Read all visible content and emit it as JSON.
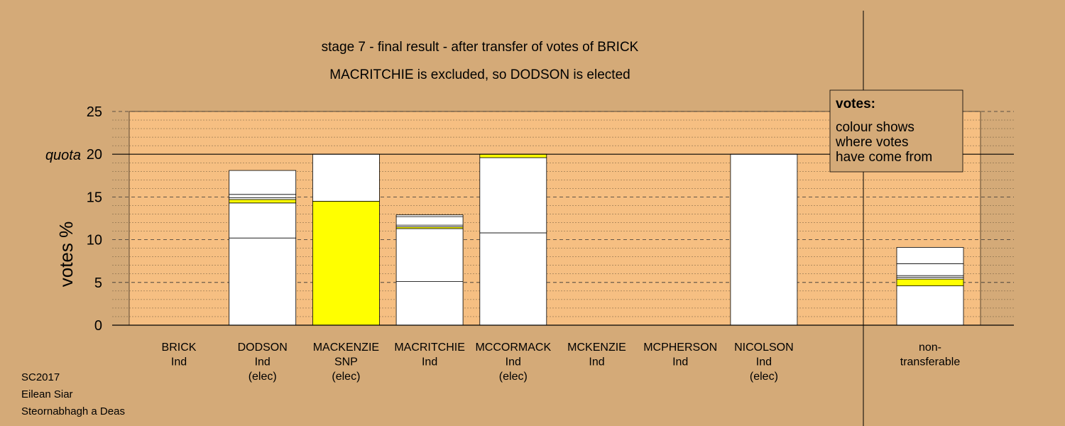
{
  "chart_data": {
    "type": "bar",
    "stacked": true,
    "title": "stage 7 - final result - after transfer of votes of BRICK",
    "subtitle": "MACRITCHIE is excluded, so DODSON is elected",
    "ylabel": "votes %",
    "ylim": [
      0,
      25
    ],
    "yticks": [
      "0",
      "5",
      "10",
      "15",
      "20",
      "25"
    ],
    "quota": {
      "label": "quota",
      "value": 20
    },
    "grid": true,
    "categories": [
      {
        "lines": [
          "BRICK",
          "Ind"
        ]
      },
      {
        "lines": [
          "DODSON",
          "Ind",
          "(elec)"
        ]
      },
      {
        "lines": [
          "MACKENZIE",
          "SNP",
          "(elec)"
        ]
      },
      {
        "lines": [
          "MACRITCHIE",
          "Ind"
        ]
      },
      {
        "lines": [
          "MCCORMACK",
          "Ind",
          "(elec)"
        ]
      },
      {
        "lines": [
          "MCKENZIE",
          "Ind"
        ]
      },
      {
        "lines": [
          "MCPHERSON",
          "Ind"
        ]
      },
      {
        "lines": [
          "NICOLSON",
          "Ind",
          "(elec)"
        ]
      },
      {
        "lines": [
          "non-",
          "transferable"
        ]
      }
    ],
    "stacks": [
      [],
      [
        {
          "v": 10.2,
          "c": "#ffffff"
        },
        {
          "v": 4.1,
          "c": "#ffffff"
        },
        {
          "v": 0.4,
          "c": "#ffff00"
        },
        {
          "v": 0.2,
          "c": "#ffffff"
        },
        {
          "v": 0.4,
          "c": "#ffffff"
        },
        {
          "v": 2.8,
          "c": "#ffffff"
        }
      ],
      [
        {
          "v": 14.5,
          "c": "#ffff00"
        },
        {
          "v": 5.5,
          "c": "#ffffff"
        }
      ],
      [
        {
          "v": 5.1,
          "c": "#ffffff"
        },
        {
          "v": 6.2,
          "c": "#ffffff"
        },
        {
          "v": 0.2,
          "c": "#ffff00"
        },
        {
          "v": 0.2,
          "c": "#ffffff"
        },
        {
          "v": 1.0,
          "c": "#ffffff"
        },
        {
          "v": 0.2,
          "c": "#ffffff"
        }
      ],
      [
        {
          "v": 10.8,
          "c": "#ffffff"
        },
        {
          "v": 8.8,
          "c": "#ffffff"
        },
        {
          "v": 0.4,
          "c": "#ffff00"
        }
      ],
      [],
      [],
      [
        {
          "v": 20.0,
          "c": "#ffffff"
        }
      ],
      [
        {
          "v": 4.6,
          "c": "#ffffff"
        },
        {
          "v": 0.8,
          "c": "#ffff00"
        },
        {
          "v": 0.2,
          "c": "#ffffff"
        },
        {
          "v": 0.2,
          "c": "#ffffff"
        },
        {
          "v": 1.4,
          "c": "#ffffff"
        },
        {
          "v": 1.9,
          "c": "#ffffff"
        }
      ]
    ],
    "legend": {
      "title": "votes:",
      "lines": [
        "colour shows",
        "where votes",
        "have come from"
      ],
      "placement": "top-right"
    },
    "colors": {
      "background": "#d4aa78",
      "plot_area": "#f6bf82",
      "snp": "#ffff00",
      "independent": "#ffffff"
    }
  },
  "footer": {
    "lines": [
      "SC2017",
      "Eilean Siar",
      "Steornabhagh a Deas"
    ]
  }
}
